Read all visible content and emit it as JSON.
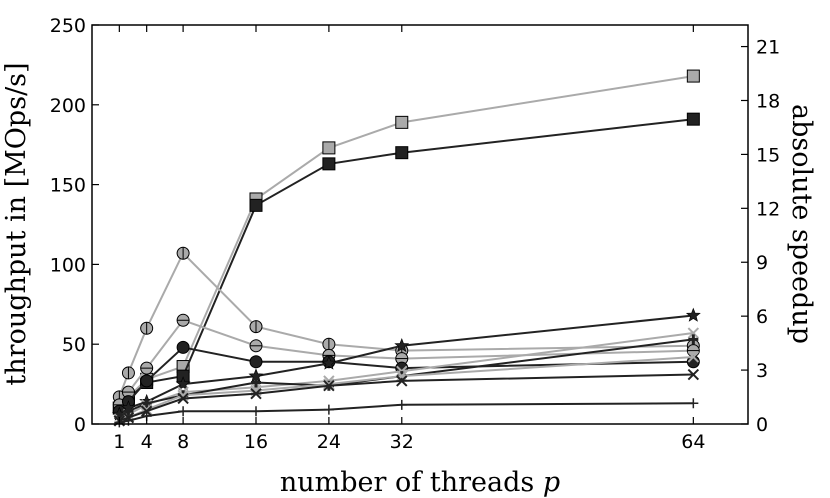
{
  "chart_data": {
    "type": "line",
    "xlabel": "number of threads",
    "xlabel_var": "p",
    "ylabel": "throughput in [MOps/s]",
    "ylabel_right": "absolute speedup",
    "xlim": [
      -2,
      70
    ],
    "ylim": [
      0,
      250
    ],
    "ylim_right": [
      0,
      22.2
    ],
    "x_ticks": [
      1,
      4,
      8,
      16,
      24,
      32,
      64
    ],
    "y_ticks": [
      0,
      50,
      100,
      150,
      200,
      250
    ],
    "y_ticks_right": [
      0,
      3,
      6,
      9,
      12,
      15,
      18,
      21
    ],
    "grid": false,
    "legend": "none",
    "series": [
      {
        "color": "#aaaaaa",
        "marker": "square",
        "x": [
          1,
          2,
          4,
          8,
          16,
          24,
          32,
          64
        ],
        "y": [
          10,
          17,
          28,
          36,
          141,
          173,
          189,
          218
        ]
      },
      {
        "color": "#222222",
        "marker": "square",
        "x": [
          1,
          2,
          4,
          8,
          16,
          24,
          32,
          64
        ],
        "y": [
          10,
          16,
          26,
          30,
          137,
          163,
          170,
          191
        ]
      },
      {
        "color": "#aaaaaa",
        "marker": "circle-vbar",
        "x": [
          1,
          2,
          4,
          8,
          16,
          24,
          32,
          64
        ],
        "y": [
          17,
          32,
          60,
          107,
          61,
          50,
          46,
          49
        ]
      },
      {
        "color": "#aaaaaa",
        "marker": "circle-hbar",
        "x": [
          1,
          2,
          4,
          8,
          16,
          24,
          32,
          64
        ],
        "y": [
          12,
          20,
          35,
          65,
          49,
          43,
          41,
          46
        ]
      },
      {
        "color": "#222222",
        "marker": "circle",
        "x": [
          1,
          2,
          4,
          8,
          16,
          24,
          32,
          64
        ],
        "y": [
          8,
          14,
          27,
          48,
          39,
          39,
          35,
          39
        ]
      },
      {
        "color": "#222222",
        "marker": "star",
        "x": [
          1,
          2,
          4,
          8,
          16,
          24,
          32,
          64
        ],
        "y": [
          6,
          10,
          14,
          25,
          30,
          38,
          49,
          68
        ]
      },
      {
        "color": "#aaaaaa",
        "marker": "x",
        "x": [
          1,
          2,
          4,
          8,
          16,
          24,
          32,
          64
        ],
        "y": [
          3,
          6,
          12,
          20,
          23,
          27,
          33,
          57
        ]
      },
      {
        "color": "#222222",
        "marker": "plus-thick",
        "x": [
          1,
          2,
          4,
          8,
          16,
          24,
          32,
          64
        ],
        "y": [
          4,
          8,
          13,
          18,
          26,
          24,
          30,
          53
        ]
      },
      {
        "color": "#aaaaaa",
        "marker": "x",
        "x": [
          1,
          2,
          4,
          8,
          16,
          24,
          32,
          64
        ],
        "y": [
          2,
          4,
          9,
          18,
          21,
          25,
          30,
          42
        ]
      },
      {
        "color": "#222222",
        "marker": "x",
        "x": [
          1,
          2,
          4,
          8,
          16,
          24,
          32,
          64
        ],
        "y": [
          2,
          4,
          8,
          16,
          19,
          24,
          27,
          31
        ]
      },
      {
        "color": "#222222",
        "marker": "plus",
        "x": [
          1,
          2,
          4,
          8,
          16,
          24,
          32,
          64
        ],
        "y": [
          1,
          2,
          5,
          8,
          8,
          9,
          12,
          13
        ]
      }
    ]
  }
}
